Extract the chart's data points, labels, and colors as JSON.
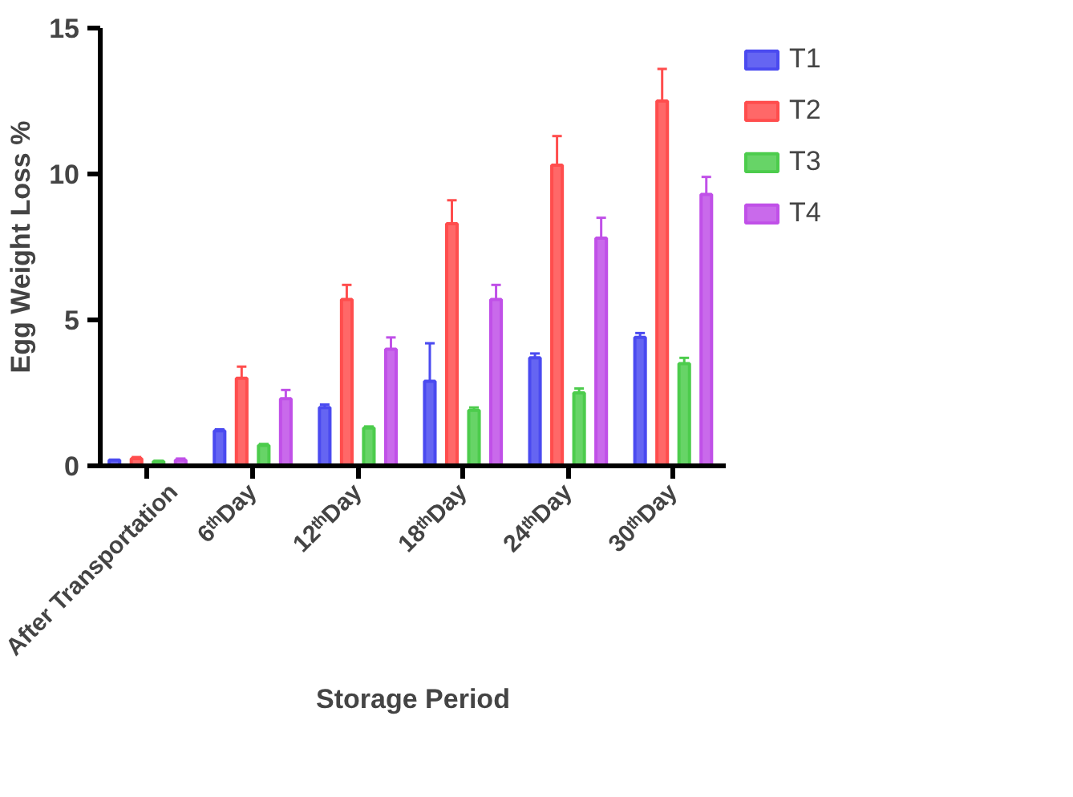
{
  "chart_data": {
    "type": "bar",
    "xlabel": "Storage Period",
    "ylabel": "Egg Weight Loss %",
    "categories": [
      "After Transportation",
      "6ᵗʰDay",
      "12ᵗʰDay",
      "18ᵗʰDay",
      "24ᵗʰDay",
      "30ᵗʰDay"
    ],
    "series": [
      {
        "name": "T1",
        "color": "#4a4af0",
        "values": [
          0.2,
          1.2,
          2.0,
          2.9,
          3.7,
          4.4
        ],
        "errors": [
          null,
          [
            1.2,
            1.25
          ],
          [
            2.0,
            2.1
          ],
          [
            2.9,
            4.2
          ],
          [
            3.7,
            3.85
          ],
          [
            4.4,
            4.55
          ]
        ]
      },
      {
        "name": "T2",
        "color": "#ff4d4d",
        "values": [
          0.25,
          3.0,
          5.7,
          8.3,
          10.3,
          12.5
        ],
        "errors": [
          [
            0.25,
            0.3
          ],
          [
            3.0,
            3.4
          ],
          [
            5.7,
            6.2
          ],
          [
            8.3,
            9.1
          ],
          [
            10.3,
            11.3
          ],
          [
            12.5,
            13.6
          ]
        ]
      },
      {
        "name": "T3",
        "color": "#4ccc4c",
        "values": [
          0.15,
          0.7,
          1.3,
          1.9,
          2.5,
          3.5
        ],
        "errors": [
          [
            0.15,
            0.17
          ],
          [
            0.7,
            0.75
          ],
          [
            1.3,
            1.35
          ],
          [
            1.9,
            2.0
          ],
          [
            2.5,
            2.65
          ],
          [
            3.5,
            3.7
          ]
        ]
      },
      {
        "name": "T4",
        "color": "#c050e8",
        "values": [
          0.2,
          2.3,
          4.0,
          5.7,
          7.8,
          9.3
        ],
        "errors": [
          [
            0.2,
            0.25
          ],
          [
            2.3,
            2.6
          ],
          [
            4.0,
            4.4
          ],
          [
            5.7,
            6.2
          ],
          [
            7.8,
            8.5
          ],
          [
            9.3,
            9.9
          ]
        ]
      }
    ],
    "ylim": [
      0,
      15
    ],
    "yticks": [
      0,
      5,
      10,
      15
    ],
    "grid": false,
    "legend": "top right"
  }
}
